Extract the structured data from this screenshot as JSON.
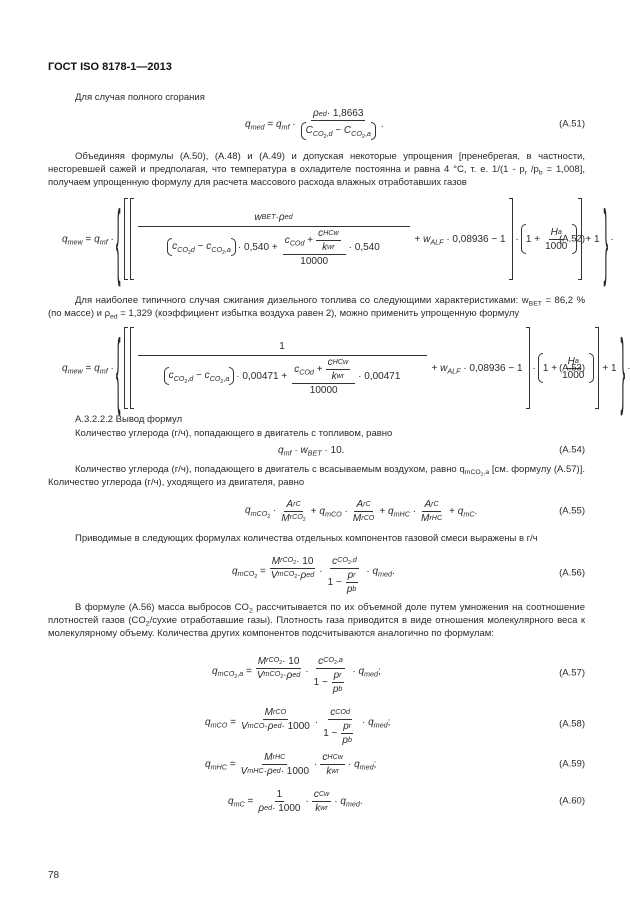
{
  "header": {
    "title": "ГОСТ ISO 8178-1—2013"
  },
  "page_number": "78",
  "p1": "Для случая полного сгорания",
  "eq51": {
    "lhs": "q_{med} = q_{mf} ·",
    "num": "ρ_{ed} · 1,8663",
    "den": "C_{CO_{2},d} − C_{CO_{2},a}",
    "tail": ".",
    "label": "(A.51)"
  },
  "p2": "Объединяя формулы (А.50), (А.48) и (А.49) и допуская некоторые упрощения [пренебрегая, в частности, несгоревшей сажей и предполагая, что температура в охладителе постоянна и равна 4 °С, т. е. 1/(1 - p_{r} /p_{b} = 1,008], получаем упрощенную формулу для расчета массового расхода влажных отработавших газов",
  "eq52": {
    "lhs": "q_{mew} = q_{mf} ·",
    "num": "w_{BET} · ρ_{ed}",
    "den_a": "c_{CO_{2}d} − c_{CO_{2},a}",
    "den_b": "· 0,540 +",
    "inner_num_a": "c_{COd} +",
    "inner_frac_num": "c_{HCw}",
    "inner_frac_den": "k_{wr}",
    "inner_den": "10000",
    "den_c": "· 0,540",
    "mid": "+ w_{ALF} · 0,08936 − 1",
    "dot": "·",
    "paren_a": "1 +",
    "h_num": "H_{a}",
    "h_den": "1000",
    "end": "+ 1",
    "tail": "·",
    "label": "(A.52)"
  },
  "p3": "Для наиболее типичного случая сжигания дизельного топлива со следующими характеристиками: w_{BET} = 86,2 % (по массе) и ρ_{ed} = 1,329 (коэффициент избытка воздуха равен 2), можно применить упрощенную формулу",
  "eq53": {
    "lhs": "q_{mew} = q_{mf} ·",
    "num": "1",
    "den_a": "c_{CO_{2},d} − c_{CO_{2},a}",
    "den_b": "· 0,00471 +",
    "inner_num_a": "c_{COd} +",
    "inner_frac_num": "c_{HCw}",
    "inner_frac_den": "k_{wr}",
    "inner_den": "10000",
    "den_c": "· 0,00471",
    "mid": "+ w_{ALF} · 0,08936 − 1",
    "dot": "·",
    "paren_a": "1 +",
    "h_num": "H_{a}",
    "h_den": "1000",
    "end": "+ 1",
    "tail": "·",
    "label": "(A.53)"
  },
  "heading": "А.3.2.2.2 Вывод формул",
  "p4": "Количество углерода (г/ч), попадающего в двигатель с топливом, равно",
  "eq54": {
    "expr": "q_{mf} · w_{BET} · 10.",
    "label": "(A.54)"
  },
  "p5": "Количество углерода (г/ч), попадающего в двигатель с всасываемым воздухом, равно q_{mCO_{2},a} [см. формулу (А.57)]. Количество углерода (г/ч), уходящего из двигателя, равно",
  "eq55": {
    "t1": "q_{mCO_{2}} ·",
    "f1n": "A_{rC}",
    "f1d": "M_{rCO_{2}}",
    "t2": "+ q_{mCO} ·",
    "f2n": "A_{rC}",
    "f2d": "M_{rCO}",
    "t3": "+ q_{mHC} ·",
    "f3n": "A_{rC}",
    "f3d": "M_{rHC}",
    "t4": "+ q_{mC}.",
    "label": "(A.55)"
  },
  "p6": "Приводимые в следующих формулах количества отдельных компонентов газовой смеси выражены в г/ч",
  "eq56": {
    "lhs": "q_{mCO_{2}} =",
    "f1n": "M_{rCO_{2}} · 10",
    "f1d": "V_{mCO_{2}} · ρ_{ed}",
    "dot": "·",
    "f2n": "c_{CO_{2},d}",
    "f2d_a": "1 −",
    "pn": "p_{r}",
    "pd": "p_{b}",
    "tail": "· q_{med}.",
    "label": "(A.56)"
  },
  "p7": "В формуле (А.56) масса выбросов CO_{2} рассчитывается по их объемной доле путем умножения на соотношение плотностей газов (CO_{2}/сухие отработавшие газы). Плотность газа приводится в виде отношения молекулярного веса к молекулярному объему. Количества других компонентов подсчитываются аналогично по формулам:",
  "eq57": {
    "lhs": "q_{mCO_{2},a} =",
    "f1n": "M_{rCO_{2}} · 10",
    "f1d": "V_{mCO_{2}} · ρ_{ed}",
    "dot": "·",
    "f2n": "c_{CO_{2},a}",
    "f2d_a": "1 −",
    "pn": "p_{r}",
    "pd": "p_{b}",
    "tail": "· q_{med};",
    "label": "(A.57)"
  },
  "eq58": {
    "lhs": "q_{mCO} =",
    "f1n": "M_{rCO}",
    "f1d": "V_{mCO} · ρ_{ed} · 1000",
    "dot": "·",
    "f2n": "c_{COd}",
    "f2d_a": "1 −",
    "pn": "p_{r}",
    "pd": "p_{b}",
    "tail": "· q_{med};",
    "label": "(A.58)"
  },
  "eq59": {
    "lhs": "q_{mHC} =",
    "f1n": "M_{rHC}",
    "f1d": "V_{mHC} · ρ_{ed} · 1000",
    "dot": "·",
    "f2n": "c_{HCw}",
    "f2d": "k_{wr}",
    "tail": "· q_{med};",
    "label": "(A.59)"
  },
  "eq60": {
    "lhs": "q_{mC} =",
    "f1n": "1",
    "f1d": "ρ_{ed} · 1000",
    "dot": "·",
    "f2n": "c_{Cw}",
    "f2d": "k_{wr}",
    "tail": "· q_{med}.",
    "label": "(A.60)"
  }
}
